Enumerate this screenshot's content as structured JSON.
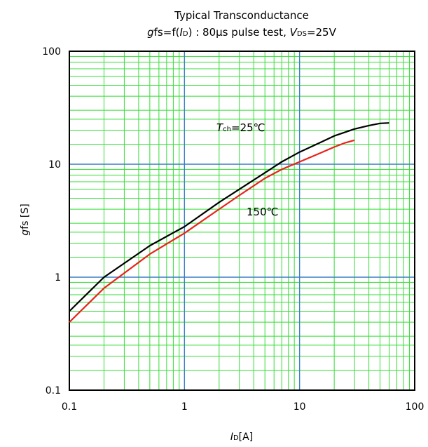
{
  "chart_data": {
    "type": "line",
    "title": "Typical Transconductance",
    "subtitle": {
      "gfs_g": "g",
      "gfs_rest": "fs=f(",
      "id_i": "I",
      "id_sub": "D",
      "mid": ") : 80μs pulse test, ",
      "v": "V",
      "v_sub": "DS",
      "end": "=25V"
    },
    "xlabel": {
      "main": "I",
      "sub": "D",
      "unit": "[A]"
    },
    "ylabel": {
      "main": "g",
      "sub": "fs",
      "unit": "  [S]"
    },
    "x_scale": "log",
    "y_scale": "log",
    "xlim": [
      0.1,
      100
    ],
    "ylim": [
      0.1,
      100
    ],
    "x_ticks": [
      "0.1",
      "1",
      "10",
      "100"
    ],
    "y_ticks": [
      "0.1",
      "1",
      "10",
      "100"
    ],
    "grid": true,
    "colors": {
      "minor_grid": "#33dd33",
      "major_grid": "#3a7fc4",
      "frame": "#000000",
      "background": "#ffffff"
    },
    "series": [
      {
        "color": "#000000",
        "annotation": {
          "t": "T",
          "sub": "ch",
          "rest": "=25℃"
        },
        "x": [
          0.1,
          0.2,
          0.5,
          1,
          2,
          3,
          5,
          7,
          10,
          15,
          20,
          30,
          40,
          50,
          60
        ],
        "y": [
          0.5,
          1.0,
          1.9,
          2.8,
          4.6,
          6.0,
          8.4,
          10.5,
          12.8,
          15.5,
          17.8,
          20.5,
          22.0,
          23.0,
          23.2
        ]
      },
      {
        "color": "#e8231a",
        "annotation": {
          "t": "",
          "sub": "",
          "rest": "150℃"
        },
        "x": [
          0.1,
          0.2,
          0.5,
          1,
          2,
          3,
          5,
          7,
          10,
          15,
          20,
          25,
          30
        ],
        "y": [
          0.4,
          0.8,
          1.6,
          2.45,
          4.0,
          5.3,
          7.5,
          9.0,
          10.5,
          12.5,
          14.2,
          15.5,
          16.3
        ]
      }
    ]
  }
}
